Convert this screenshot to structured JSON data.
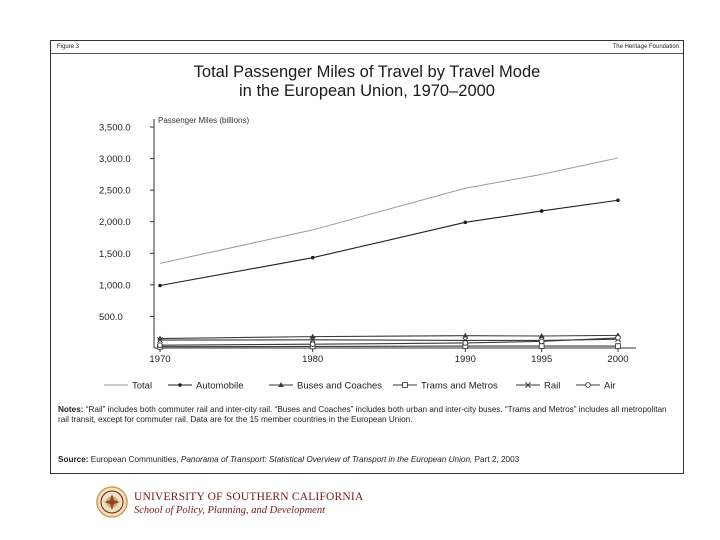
{
  "figure": {
    "label": "Figure 3",
    "publisher": "The Heritage Foundation",
    "title_line1": "Total Passenger Miles of Travel by Travel Mode",
    "title_line2": "in the European Union, 1970–2000"
  },
  "notes": {
    "label": "Notes:",
    "text": "“Rail” includes both commuter rail and inter-city rail. “Buses and Coaches” includes both urban and inter-city buses. “Trams and Metros” includes all metropolitan rail transit, except for commuter rail. Data are for the 15 member countries in the European Union."
  },
  "source": {
    "label": "Source:",
    "prefix": "European Communities,",
    "title": "Panorama of Transport: Statistical Overview of Transport in the European Union,",
    "suffix": "Part 2, 2003"
  },
  "footer": {
    "university": "UNIVERSITY OF SOUTHERN CALIFORNIA",
    "school": "School of Policy, Planning, and Development"
  },
  "colors": {
    "total": "#9a9a9a",
    "automobile": "#1e1e1e",
    "axis": "#333333",
    "usc_cardinal": "#7a1418",
    "usc_gold": "#c9a24a"
  },
  "chart_data": {
    "type": "line",
    "ylabel": "Passenger Miles (billions)",
    "xlabel": "",
    "ylim": [
      0,
      3500
    ],
    "yticks": [
      500,
      1000,
      1500,
      2000,
      2500,
      3000,
      3500
    ],
    "ytick_labels": [
      "500.0",
      "1,000.0",
      "1,500.0",
      "2,000.0",
      "2,500.0",
      "3,000.0",
      "3,500.0"
    ],
    "x": [
      1970,
      1980,
      1990,
      1995,
      2000
    ],
    "x_labels": [
      "1970",
      "1980",
      "1990",
      "1995",
      "2000"
    ],
    "grid": false,
    "legend_position": "bottom",
    "series": [
      {
        "name": "Total",
        "marker": "none",
        "color": "#9a9a9a",
        "values": [
          1340,
          1870,
          2530,
          2750,
          3010
        ]
      },
      {
        "name": "Automobile",
        "marker": "dot",
        "color": "#1e1e1e",
        "values": [
          990,
          1430,
          1990,
          2170,
          2340
        ]
      },
      {
        "name": "Buses and Coaches",
        "marker": "triangle",
        "color": "#3a3a3a",
        "values": [
          150,
          180,
          195,
          190,
          200
        ]
      },
      {
        "name": "Trams and Metros",
        "marker": "square",
        "color": "#3a3a3a",
        "values": [
          20,
          25,
          30,
          30,
          30
        ]
      },
      {
        "name": "Rail",
        "marker": "x",
        "color": "#3a3a3a",
        "values": [
          125,
          130,
          120,
          120,
          140
        ]
      },
      {
        "name": "Air",
        "marker": "circle",
        "color": "#3a3a3a",
        "values": [
          45,
          60,
          80,
          105,
          160
        ]
      }
    ]
  }
}
